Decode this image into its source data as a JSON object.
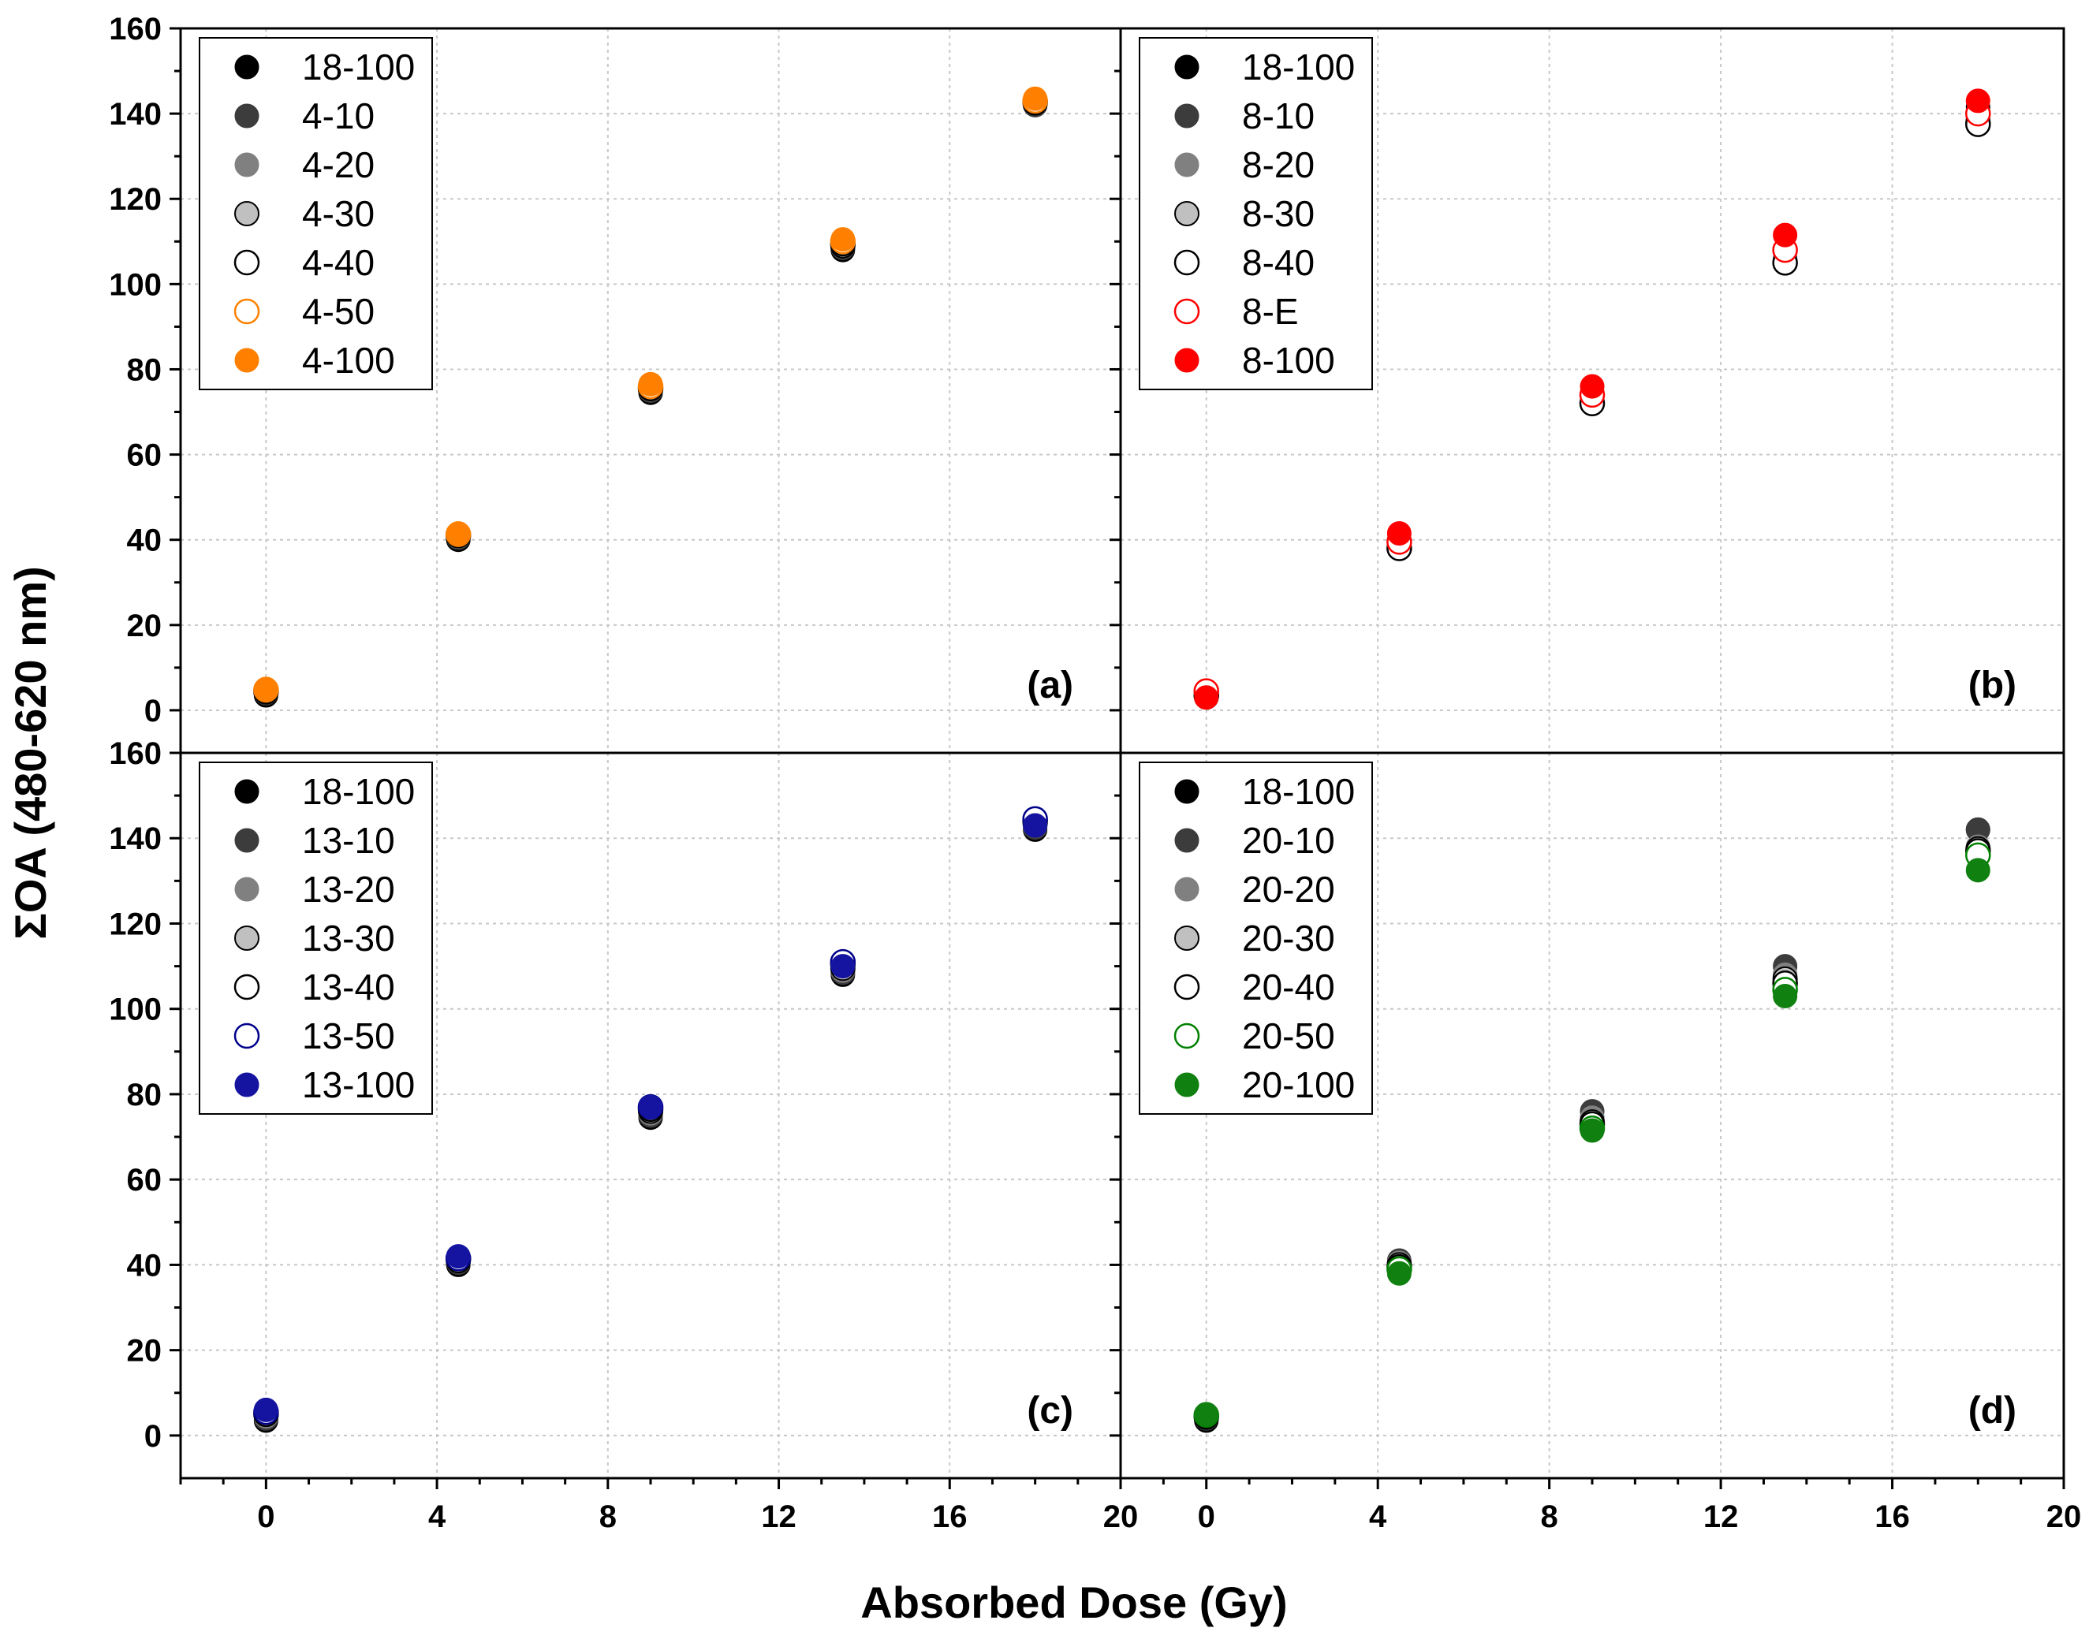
{
  "figure": {
    "xlabel": "Absorbed Dose (Gy)",
    "ylabel": "ΣOA (480-620 nm)"
  },
  "chart_data": [
    {
      "type": "scatter",
      "panel_label": "(a)",
      "xlim": [
        -2,
        20
      ],
      "ylim": [
        -10,
        160
      ],
      "xticks": [
        "0",
        "4",
        "8",
        "12",
        "16",
        "20"
      ],
      "yticks": [
        "0",
        "20",
        "40",
        "60",
        "80",
        "100",
        "120",
        "140",
        "160"
      ],
      "grid": true,
      "legend_position": "top-left",
      "x": [
        0,
        4.5,
        9,
        13.5,
        18
      ],
      "series": [
        {
          "name": "18-100",
          "style": "filled",
          "color": "#000000",
          "values": [
            3.5,
            40,
            74.5,
            108,
            142
          ]
        },
        {
          "name": "4-10",
          "style": "filled",
          "color": "#3c3c3c",
          "values": [
            4,
            40.5,
            75,
            108.5,
            142
          ]
        },
        {
          "name": "4-20",
          "style": "filled",
          "color": "#808080",
          "values": [
            4.2,
            40.8,
            75.3,
            109,
            142.5
          ]
        },
        {
          "name": "4-30",
          "style": "filled-edge",
          "color": "#c0c0c0",
          "values": [
            4.3,
            41,
            75.5,
            109,
            142.5
          ]
        },
        {
          "name": "4-40",
          "style": "open",
          "color": "#000000",
          "values": [
            4.5,
            41,
            75.5,
            109.5,
            142.8
          ]
        },
        {
          "name": "4-50",
          "style": "open",
          "color": "#ff8000",
          "values": [
            4.8,
            41.3,
            76,
            110,
            143
          ]
        },
        {
          "name": "4-100",
          "style": "filled",
          "color": "#ff8000",
          "values": [
            5,
            41.5,
            76.5,
            110.5,
            143.5
          ]
        }
      ]
    },
    {
      "type": "scatter",
      "panel_label": "(b)",
      "xlim": [
        -2,
        20
      ],
      "ylim": [
        -10,
        160
      ],
      "xticks": [
        "0",
        "4",
        "8",
        "12",
        "16",
        "20"
      ],
      "yticks": [],
      "grid": true,
      "legend_position": "top-left",
      "x": [
        0,
        4.5,
        9,
        13.5,
        18
      ],
      "series": [
        {
          "name": "18-100",
          "style": "filled",
          "color": "#000000",
          "values": [
            3,
            40,
            74.5,
            108,
            141.5
          ]
        },
        {
          "name": "8-10",
          "style": "filled",
          "color": "#3c3c3c",
          "values": [
            3,
            39,
            73,
            106,
            139
          ]
        },
        {
          "name": "8-20",
          "style": "filled",
          "color": "#808080",
          "values": [
            3.2,
            38.5,
            72.5,
            105.5,
            138.5
          ]
        },
        {
          "name": "8-30",
          "style": "filled-edge",
          "color": "#c0c0c0",
          "values": [
            3.3,
            38,
            72,
            105,
            138
          ]
        },
        {
          "name": "8-40",
          "style": "open",
          "color": "#000000",
          "values": [
            3.5,
            38,
            72,
            105,
            137.5
          ]
        },
        {
          "name": "8-E",
          "style": "open",
          "color": "#ff0000",
          "values": [
            4.5,
            39.5,
            74,
            108,
            140
          ]
        },
        {
          "name": "8-100",
          "style": "filled",
          "color": "#ff0000",
          "values": [
            3,
            41.5,
            76,
            111.5,
            143
          ]
        }
      ]
    },
    {
      "type": "scatter",
      "panel_label": "(c)",
      "xlim": [
        -2,
        20
      ],
      "ylim": [
        -10,
        160
      ],
      "xticks": [
        "0",
        "4",
        "8",
        "12",
        "16",
        "20"
      ],
      "yticks": [
        "0",
        "20",
        "40",
        "60",
        "80",
        "100",
        "120",
        "140",
        "160"
      ],
      "grid": true,
      "legend_position": "top-left",
      "x": [
        0,
        4.5,
        9,
        13.5,
        18
      ],
      "series": [
        {
          "name": "18-100",
          "style": "filled",
          "color": "#000000",
          "values": [
            3.5,
            40,
            74.5,
            108,
            142
          ]
        },
        {
          "name": "13-10",
          "style": "filled",
          "color": "#3c3c3c",
          "values": [
            4,
            40.5,
            75,
            108.5,
            142.5
          ]
        },
        {
          "name": "13-20",
          "style": "filled",
          "color": "#808080",
          "values": [
            4.5,
            41,
            75.5,
            109,
            143
          ]
        },
        {
          "name": "13-30",
          "style": "filled-edge",
          "color": "#c0c0c0",
          "values": [
            5,
            41,
            76,
            109.5,
            143.5
          ]
        },
        {
          "name": "13-40",
          "style": "open",
          "color": "#000000",
          "values": [
            5,
            41.5,
            76.5,
            110.5,
            144
          ]
        },
        {
          "name": "13-50",
          "style": "open",
          "color": "#00008b",
          "values": [
            5.5,
            41.5,
            77,
            111,
            144.5
          ]
        },
        {
          "name": "13-100",
          "style": "filled",
          "color": "#1414a0",
          "values": [
            6,
            42,
            77,
            110,
            143
          ]
        }
      ]
    },
    {
      "type": "scatter",
      "panel_label": "(d)",
      "xlim": [
        -2,
        20
      ],
      "ylim": [
        -10,
        160
      ],
      "xticks": [
        "0",
        "4",
        "8",
        "12",
        "16",
        "20"
      ],
      "yticks": [],
      "grid": true,
      "legend_position": "top-left",
      "x": [
        0,
        4.5,
        9,
        13.5,
        18
      ],
      "series": [
        {
          "name": "18-100",
          "style": "filled",
          "color": "#000000",
          "values": [
            3.5,
            40,
            74.5,
            108,
            142
          ]
        },
        {
          "name": "20-10",
          "style": "filled",
          "color": "#3c3c3c",
          "values": [
            4,
            41,
            76,
            110,
            142
          ]
        },
        {
          "name": "20-20",
          "style": "filled",
          "color": "#808080",
          "values": [
            4.2,
            40.5,
            74.5,
            108,
            138
          ]
        },
        {
          "name": "20-30",
          "style": "filled-edge",
          "color": "#c0c0c0",
          "values": [
            4.3,
            40,
            73.5,
            107,
            137.5
          ]
        },
        {
          "name": "20-40",
          "style": "open",
          "color": "#000000",
          "values": [
            4.5,
            39.5,
            73,
            106,
            137
          ]
        },
        {
          "name": "20-50",
          "style": "open",
          "color": "#008000",
          "values": [
            4.8,
            39,
            72,
            104.5,
            136
          ]
        },
        {
          "name": "20-100",
          "style": "filled",
          "color": "#108010",
          "values": [
            5,
            38,
            71.5,
            103,
            132.5
          ]
        }
      ]
    }
  ]
}
